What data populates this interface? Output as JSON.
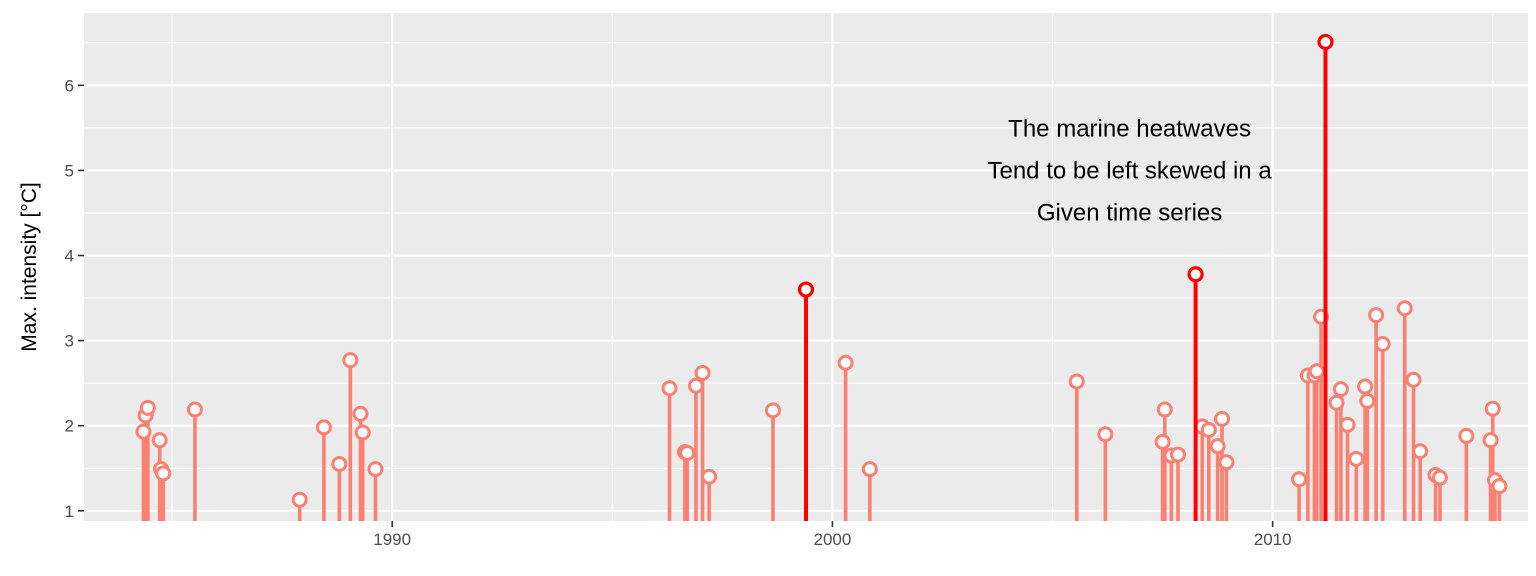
{
  "chart_data": {
    "type": "lollipop",
    "title": "",
    "xlabel": "",
    "ylabel": "Max. intensity [°C]",
    "xlim": [
      1983.0,
      2015.8
    ],
    "ylim": [
      0.88,
      6.85
    ],
    "x_ticks": [
      1990,
      2000,
      2010
    ],
    "x_tick_labels": [
      "1990",
      "2000",
      "2010"
    ],
    "y_ticks": [
      1,
      2,
      3,
      4,
      5,
      6
    ],
    "y_tick_labels": [
      "1",
      "2",
      "3",
      "4",
      "5",
      "6"
    ],
    "baseline": 0,
    "colors": {
      "panel": "#ebebeb",
      "grid": "#ffffff",
      "events": "#fa8072",
      "highlight": "#ff0000",
      "marker_fill": "#ffffff"
    },
    "annotation": {
      "lines": [
        "The marine heatwaves",
        "Tend to be left skewed in a",
        "Given time series"
      ],
      "x": 2006.75,
      "y": 5.0
    },
    "series": [
      {
        "name": "events",
        "points": [
          {
            "x": 1984.35,
            "y": 1.93
          },
          {
            "x": 1984.4,
            "y": 2.12
          },
          {
            "x": 1984.45,
            "y": 2.21
          },
          {
            "x": 1984.72,
            "y": 1.83
          },
          {
            "x": 1984.75,
            "y": 1.49
          },
          {
            "x": 1984.8,
            "y": 1.44
          },
          {
            "x": 1985.52,
            "y": 2.19
          },
          {
            "x": 1987.9,
            "y": 1.13
          },
          {
            "x": 1988.45,
            "y": 1.98
          },
          {
            "x": 1988.8,
            "y": 1.55
          },
          {
            "x": 1989.05,
            "y": 2.77
          },
          {
            "x": 1989.28,
            "y": 2.14
          },
          {
            "x": 1989.33,
            "y": 1.92
          },
          {
            "x": 1989.62,
            "y": 1.49
          },
          {
            "x": 1996.3,
            "y": 2.44
          },
          {
            "x": 1996.65,
            "y": 1.69
          },
          {
            "x": 1996.7,
            "y": 1.68
          },
          {
            "x": 1996.9,
            "y": 2.47
          },
          {
            "x": 1997.05,
            "y": 2.62
          },
          {
            "x": 1997.2,
            "y": 1.4
          },
          {
            "x": 1998.65,
            "y": 2.18
          },
          {
            "x": 2000.3,
            "y": 2.74
          },
          {
            "x": 2000.85,
            "y": 1.49
          },
          {
            "x": 2005.55,
            "y": 2.52
          },
          {
            "x": 2006.2,
            "y": 1.9
          },
          {
            "x": 2007.5,
            "y": 1.81
          },
          {
            "x": 2007.55,
            "y": 2.19
          },
          {
            "x": 2007.7,
            "y": 1.65
          },
          {
            "x": 2007.85,
            "y": 1.66
          },
          {
            "x": 2008.4,
            "y": 1.99
          },
          {
            "x": 2008.55,
            "y": 1.95
          },
          {
            "x": 2008.75,
            "y": 1.76
          },
          {
            "x": 2008.85,
            "y": 2.08
          },
          {
            "x": 2008.95,
            "y": 1.57
          },
          {
            "x": 2010.6,
            "y": 1.37
          },
          {
            "x": 2010.8,
            "y": 2.59
          },
          {
            "x": 2010.95,
            "y": 2.59
          },
          {
            "x": 2011.0,
            "y": 2.64
          },
          {
            "x": 2011.1,
            "y": 3.28
          },
          {
            "x": 2011.45,
            "y": 2.27
          },
          {
            "x": 2011.55,
            "y": 2.43
          },
          {
            "x": 2011.7,
            "y": 2.01
          },
          {
            "x": 2011.9,
            "y": 1.61
          },
          {
            "x": 2012.1,
            "y": 2.46
          },
          {
            "x": 2012.15,
            "y": 2.29
          },
          {
            "x": 2012.35,
            "y": 3.3
          },
          {
            "x": 2012.5,
            "y": 2.96
          },
          {
            "x": 2013.0,
            "y": 3.38
          },
          {
            "x": 2013.2,
            "y": 2.54
          },
          {
            "x": 2013.35,
            "y": 1.7
          },
          {
            "x": 2013.7,
            "y": 1.42
          },
          {
            "x": 2013.8,
            "y": 1.39
          },
          {
            "x": 2014.4,
            "y": 1.88
          },
          {
            "x": 2014.95,
            "y": 1.83
          },
          {
            "x": 2015.0,
            "y": 2.2
          },
          {
            "x": 2015.05,
            "y": 1.36
          },
          {
            "x": 2015.15,
            "y": 1.29
          }
        ]
      },
      {
        "name": "highlighted",
        "points": [
          {
            "x": 1999.4,
            "y": 3.6
          },
          {
            "x": 2008.25,
            "y": 3.78
          },
          {
            "x": 2011.2,
            "y": 6.51
          }
        ]
      }
    ]
  }
}
